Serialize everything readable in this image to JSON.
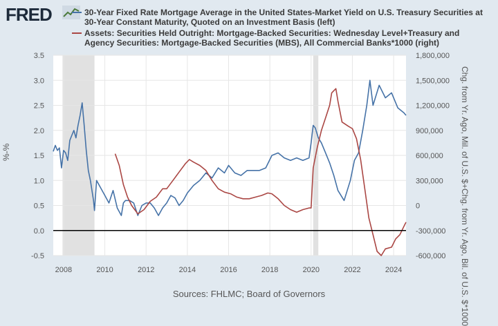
{
  "brand": {
    "name": "FRED"
  },
  "chart_data": {
    "type": "line",
    "title": "",
    "xlabel": "",
    "x_ticks": [
      "2008",
      "2010",
      "2012",
      "2014",
      "2016",
      "2018",
      "2020",
      "2022",
      "2024"
    ],
    "xlim": [
      2007.5,
      2024.6
    ],
    "ylabel_left": "%-%",
    "ylabel_right": "Chg. from Yr. Ago, Mil. of U.S. $+Chg. from Yr. Ago, Bil. of U.S. $*1000",
    "ylim_left": [
      -0.5,
      3.5
    ],
    "ylim_right": [
      -600000,
      1800000
    ],
    "y_ticks_left": [
      "3.5",
      "3.0",
      "2.5",
      "2.0",
      "1.5",
      "1.0",
      "0.5",
      "0.0",
      "-0.5"
    ],
    "y_ticks_right": [
      "1,800,000",
      "1,500,000",
      "1,200,000",
      "900,000",
      "600,000",
      "300,000",
      "0",
      "-300,000",
      "-600,000"
    ],
    "y_tick_values_left": [
      3.5,
      3.0,
      2.5,
      2.0,
      1.5,
      1.0,
      0.5,
      0.0,
      -0.5
    ],
    "y_tick_values_right": [
      1800000,
      1500000,
      1200000,
      900000,
      600000,
      300000,
      0,
      -300000,
      -600000
    ],
    "x_tick_values": [
      2008,
      2010,
      2012,
      2014,
      2016,
      2018,
      2020,
      2022,
      2024
    ],
    "recessions": [
      [
        2007.95,
        2009.5
      ],
      [
        2020.1,
        2020.35
      ]
    ],
    "zero_line": 0.0,
    "grid": true,
    "legend_position": "top",
    "series": [
      {
        "name": "30-Year Fixed Rate Mortgage Average in the United States-Market Yield on U.S. Treasury Securities at 30-Year Constant Maturity, Quoted on an Investment Basis (left)",
        "axis": "left",
        "color": "#4572a7",
        "x": [
          2007.5,
          2007.6,
          2007.7,
          2007.8,
          2007.9,
          2008.0,
          2008.1,
          2008.2,
          2008.3,
          2008.4,
          2008.5,
          2008.6,
          2008.7,
          2008.8,
          2008.9,
          2009.0,
          2009.1,
          2009.2,
          2009.3,
          2009.45,
          2009.5,
          2009.6,
          2009.8,
          2010.0,
          2010.2,
          2010.4,
          2010.6,
          2010.8,
          2010.9,
          2011.0,
          2011.2,
          2011.4,
          2011.6,
          2011.8,
          2012.0,
          2012.2,
          2012.4,
          2012.6,
          2012.8,
          2013.0,
          2013.2,
          2013.4,
          2013.6,
          2013.8,
          2014.0,
          2014.3,
          2014.6,
          2014.9,
          2015.2,
          2015.5,
          2015.8,
          2016.0,
          2016.3,
          2016.6,
          2016.9,
          2017.2,
          2017.5,
          2017.8,
          2018.1,
          2018.4,
          2018.7,
          2019.0,
          2019.3,
          2019.6,
          2019.9,
          2020.0,
          2020.1,
          2020.2,
          2020.35,
          2020.5,
          2020.7,
          2020.9,
          2021.1,
          2021.3,
          2021.6,
          2021.9,
          2022.1,
          2022.3,
          2022.5,
          2022.7,
          2022.85,
          2023.0,
          2023.3,
          2023.6,
          2023.9,
          2024.2,
          2024.5,
          2024.6
        ],
        "values": [
          1.58,
          1.7,
          1.6,
          1.65,
          1.25,
          1.6,
          1.55,
          1.4,
          1.8,
          1.9,
          2.0,
          1.85,
          2.1,
          2.3,
          2.55,
          2.1,
          1.6,
          1.2,
          1.0,
          0.6,
          0.4,
          1.0,
          0.85,
          0.7,
          0.55,
          0.8,
          0.45,
          0.3,
          0.55,
          0.6,
          0.6,
          0.55,
          0.3,
          0.5,
          0.55,
          0.55,
          0.45,
          0.3,
          0.45,
          0.55,
          0.7,
          0.65,
          0.5,
          0.6,
          0.75,
          0.9,
          1.0,
          1.15,
          1.05,
          1.25,
          1.15,
          1.3,
          1.15,
          1.1,
          1.2,
          1.2,
          1.2,
          1.25,
          1.5,
          1.55,
          1.45,
          1.4,
          1.45,
          1.4,
          1.45,
          1.75,
          2.1,
          2.05,
          1.85,
          1.75,
          1.55,
          1.35,
          1.1,
          0.8,
          0.6,
          1.0,
          1.4,
          1.55,
          2.0,
          2.5,
          3.0,
          2.5,
          2.9,
          2.65,
          2.75,
          2.45,
          2.35,
          2.3
        ]
      },
      {
        "name": "Assets: Securities Held Outright: Mortgage-Backed Securities: Wednesday Level+Treasury and Agency Securities: Mortgage-Backed Securities (MBS), All Commercial Banks*1000 (right)",
        "axis": "right",
        "color": "#aa4643",
        "x": [
          2010.5,
          2010.7,
          2010.9,
          2011.1,
          2011.3,
          2011.6,
          2011.9,
          2012.2,
          2012.5,
          2012.8,
          2013.0,
          2013.3,
          2013.6,
          2013.9,
          2014.1,
          2014.3,
          2014.6,
          2014.9,
          2015.2,
          2015.5,
          2015.8,
          2016.1,
          2016.4,
          2016.7,
          2017.0,
          2017.3,
          2017.6,
          2017.9,
          2018.1,
          2018.4,
          2018.7,
          2019.0,
          2019.3,
          2019.6,
          2019.9,
          2020.0,
          2020.1,
          2020.3,
          2020.5,
          2020.7,
          2020.9,
          2021.0,
          2021.2,
          2021.3,
          2021.5,
          2021.8,
          2022.0,
          2022.2,
          2022.4,
          2022.6,
          2022.8,
          2023.0,
          2023.2,
          2023.4,
          2023.6,
          2023.9,
          2024.1,
          2024.3,
          2024.5,
          2024.6
        ],
        "values": [
          620000,
          480000,
          250000,
          100000,
          0,
          -100000,
          -50000,
          50000,
          100000,
          200000,
          200000,
          300000,
          400000,
          500000,
          550000,
          520000,
          480000,
          420000,
          300000,
          200000,
          160000,
          140000,
          100000,
          80000,
          80000,
          100000,
          120000,
          150000,
          140000,
          80000,
          0,
          -50000,
          -80000,
          -50000,
          -30000,
          -30000,
          450000,
          700000,
          900000,
          1050000,
          1200000,
          1350000,
          1400000,
          1250000,
          1000000,
          950000,
          920000,
          800000,
          550000,
          200000,
          -150000,
          -350000,
          -550000,
          -600000,
          -520000,
          -500000,
          -400000,
          -350000,
          -250000,
          -200000
        ]
      }
    ]
  },
  "source_text": "Sources: FHLMC; Board of Governors"
}
